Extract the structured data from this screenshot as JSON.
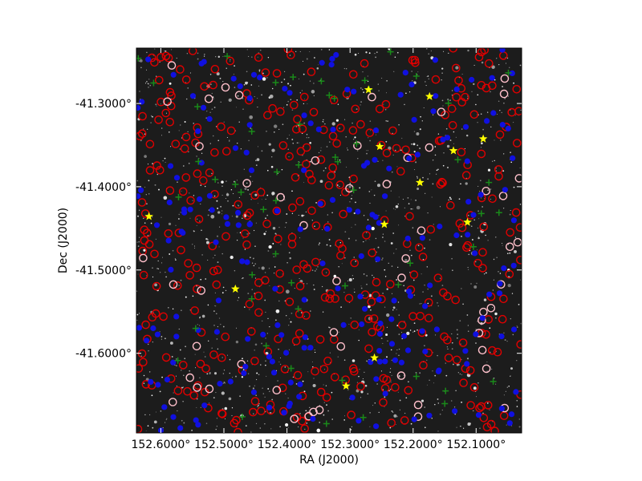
{
  "chart_data": {
    "type": "scatter",
    "xlabel": "RA (J2000)",
    "ylabel": "Dec (J2000)",
    "x_axis_inverted": true,
    "xlim": [
      152.6387,
      152.0279
    ],
    "ylim": [
      -41.6956,
      -41.2335
    ],
    "x_ticks": [
      {
        "value": 152.6,
        "label": "152.6000°"
      },
      {
        "value": 152.5,
        "label": "152.5000°"
      },
      {
        "value": 152.4,
        "label": "152.4000°"
      },
      {
        "value": 152.3,
        "label": "152.3000°"
      },
      {
        "value": 152.2,
        "label": "152.2000°"
      },
      {
        "value": 152.1,
        "label": "152.1000°"
      }
    ],
    "y_ticks": [
      {
        "value": -41.3,
        "label": "-41.3000°"
      },
      {
        "value": -41.4,
        "label": "-41.4000°"
      },
      {
        "value": -41.5,
        "label": "-41.5000°"
      },
      {
        "value": -41.6,
        "label": "-41.6000°"
      }
    ],
    "background": "dark star-field image",
    "grid": false,
    "colors": {
      "red": "#e00000",
      "pink": "#ffc0cb",
      "blue": "#1010e0",
      "green": "#1a8a1a",
      "yellow": "#ffff00"
    },
    "series": [
      {
        "marker": "open circle",
        "color": "red",
        "count_approx": 360
      },
      {
        "marker": "open circle",
        "color": "pink",
        "count_approx": 55
      },
      {
        "marker": "filled circle",
        "color": "blue",
        "count_approx": 210
      },
      {
        "marker": "plus",
        "color": "green",
        "count_approx": 55
      },
      {
        "marker": "star",
        "color": "yellow",
        "points": [
          [
            152.2707,
            -41.2835
          ],
          [
            152.1739,
            -41.2916
          ],
          [
            152.0888,
            -41.3425
          ],
          [
            152.2529,
            -41.3517
          ],
          [
            152.136,
            -41.3567
          ],
          [
            152.1891,
            -41.395
          ],
          [
            152.6188,
            -41.4357
          ],
          [
            152.1138,
            -41.4426
          ],
          [
            152.2456,
            -41.4451
          ],
          [
            152.4818,
            -41.5228
          ],
          [
            152.2613,
            -41.6055
          ],
          [
            152.3063,
            -41.6393
          ]
        ]
      }
    ]
  }
}
